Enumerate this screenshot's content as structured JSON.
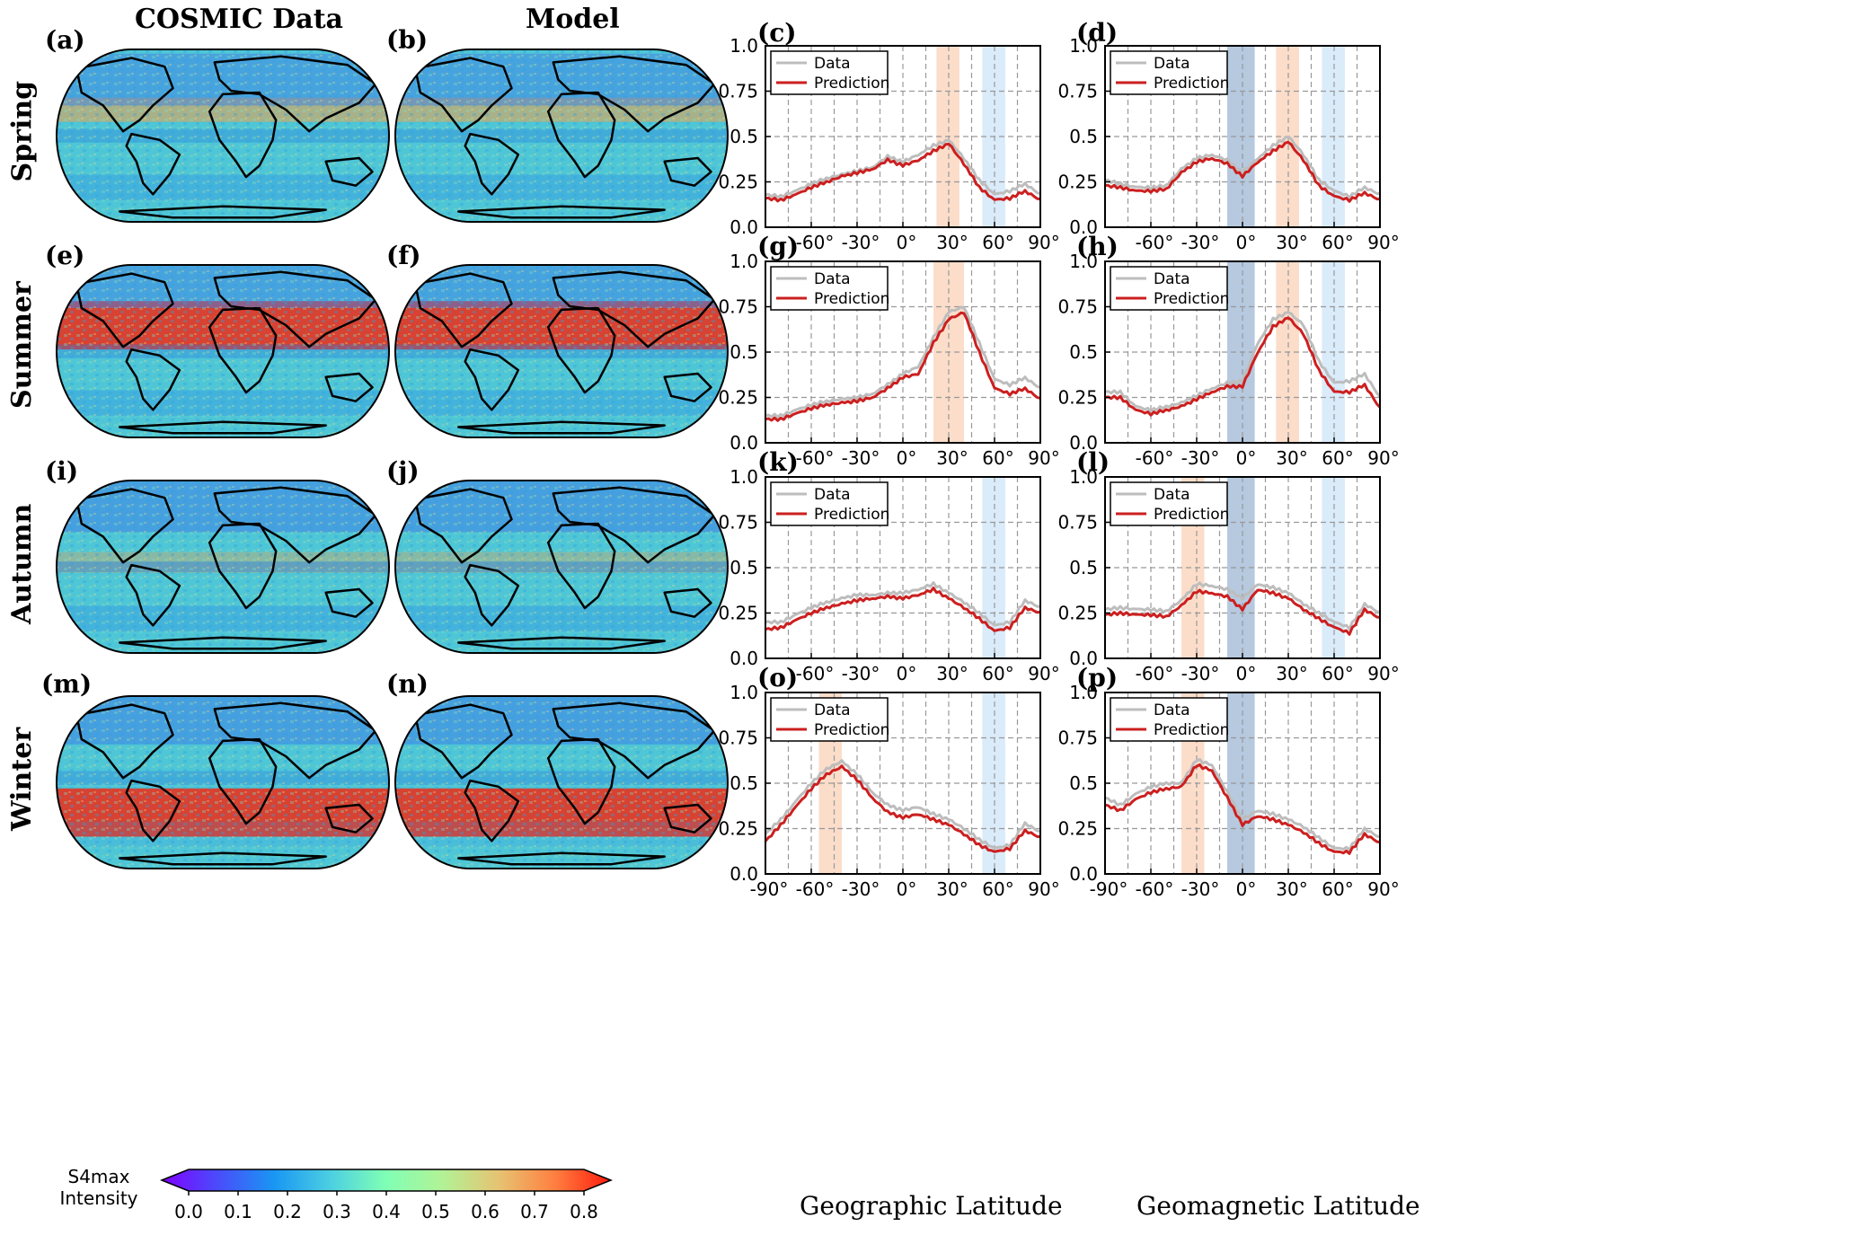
{
  "column_headers": {
    "data": "COSMIC Data",
    "model": "Model"
  },
  "seasons": [
    "Spring",
    "Summer",
    "Autumn",
    "Winter"
  ],
  "map_labels": [
    [
      "(a)",
      "(b)"
    ],
    [
      "(e)",
      "(f)"
    ],
    [
      "(i)",
      "(j)"
    ],
    [
      "(m)",
      "(n)"
    ]
  ],
  "line_labels": [
    [
      "(c)",
      "(d)"
    ],
    [
      "(g)",
      "(h)"
    ],
    [
      "(k)",
      "(l)"
    ],
    [
      "(o)",
      "(p)"
    ]
  ],
  "colorbar": {
    "title_line1": "S4max",
    "title_line2": "Intensity",
    "ticks": [
      "0.0",
      "0.1",
      "0.2",
      "0.3",
      "0.4",
      "0.5",
      "0.6",
      "0.7",
      "0.8"
    ],
    "colormap": "rainbow",
    "range": [
      0,
      0.8
    ]
  },
  "legend": {
    "data": "Data",
    "prediction": "Prediction"
  },
  "colors": {
    "data": "#bdbdbd",
    "prediction": "#cc1f1f",
    "orange_band": "#fbd9c4",
    "blue_band": "#d6e9f9",
    "darkblue_band": "#a9c0d9"
  },
  "axis": {
    "xticks": [
      -90,
      -60,
      -30,
      0,
      30,
      60,
      90
    ],
    "xticklabels": [
      "-90°",
      "-60°",
      "-30°",
      "0°",
      "30°",
      "60°",
      "90°"
    ],
    "yticklabels": [
      "0.0",
      "0.25",
      "0.5",
      "0.75",
      "1.0"
    ],
    "xtitle_geo": "Geographic Latitude",
    "xtitle_mag": "Geomagnetic Latitude"
  },
  "chart_data": [
    {
      "panel": "(c)",
      "type": "line",
      "xlim": [
        -90,
        90
      ],
      "ylim": [
        0,
        1
      ],
      "grid": true,
      "legend": "top-left",
      "bands": [
        {
          "from": 22,
          "to": 37,
          "color": "orange"
        },
        {
          "from": 52,
          "to": 67,
          "color": "blue"
        }
      ],
      "x": [
        -90,
        -80,
        -70,
        -60,
        -50,
        -40,
        -30,
        -20,
        -10,
        0,
        10,
        20,
        30,
        40,
        50,
        60,
        70,
        80,
        90
      ],
      "series": [
        {
          "name": "Data",
          "values": [
            0.18,
            0.17,
            0.2,
            0.24,
            0.27,
            0.29,
            0.31,
            0.33,
            0.39,
            0.36,
            0.4,
            0.45,
            0.48,
            0.38,
            0.26,
            0.18,
            0.2,
            0.24,
            0.18
          ]
        },
        {
          "name": "Prediction",
          "values": [
            0.16,
            0.15,
            0.18,
            0.22,
            0.25,
            0.28,
            0.3,
            0.32,
            0.37,
            0.34,
            0.37,
            0.42,
            0.46,
            0.35,
            0.22,
            0.15,
            0.16,
            0.2,
            0.15
          ]
        }
      ]
    },
    {
      "panel": "(d)",
      "type": "line",
      "xlim": [
        -90,
        90
      ],
      "ylim": [
        0,
        1
      ],
      "grid": true,
      "legend": "top-left",
      "bands": [
        {
          "from": -10,
          "to": 8,
          "color": "darkblue"
        },
        {
          "from": 22,
          "to": 37,
          "color": "orange"
        },
        {
          "from": 52,
          "to": 67,
          "color": "blue"
        }
      ],
      "x": [
        -90,
        -80,
        -70,
        -60,
        -50,
        -40,
        -30,
        -20,
        -10,
        0,
        10,
        20,
        30,
        40,
        50,
        60,
        70,
        80,
        90
      ],
      "series": [
        {
          "name": "Data",
          "values": [
            0.26,
            0.24,
            0.22,
            0.22,
            0.23,
            0.32,
            0.38,
            0.4,
            0.37,
            0.3,
            0.38,
            0.45,
            0.5,
            0.4,
            0.26,
            0.2,
            0.17,
            0.22,
            0.18
          ]
        },
        {
          "name": "Prediction",
          "values": [
            0.23,
            0.22,
            0.2,
            0.2,
            0.21,
            0.3,
            0.36,
            0.38,
            0.35,
            0.28,
            0.36,
            0.42,
            0.47,
            0.37,
            0.23,
            0.17,
            0.15,
            0.19,
            0.15
          ]
        }
      ]
    },
    {
      "panel": "(g)",
      "type": "line",
      "xlim": [
        -90,
        90
      ],
      "ylim": [
        0,
        1
      ],
      "grid": true,
      "legend": "top-left",
      "bands": [
        {
          "from": 20,
          "to": 40,
          "color": "orange"
        }
      ],
      "x": [
        -90,
        -80,
        -70,
        -60,
        -50,
        -40,
        -30,
        -20,
        -10,
        0,
        10,
        20,
        30,
        40,
        50,
        60,
        70,
        80,
        90
      ],
      "series": [
        {
          "name": "Data",
          "values": [
            0.15,
            0.15,
            0.18,
            0.21,
            0.23,
            0.24,
            0.25,
            0.27,
            0.32,
            0.38,
            0.42,
            0.58,
            0.72,
            0.75,
            0.55,
            0.35,
            0.32,
            0.36,
            0.3
          ]
        },
        {
          "name": "Prediction",
          "values": [
            0.13,
            0.13,
            0.16,
            0.19,
            0.21,
            0.22,
            0.23,
            0.25,
            0.3,
            0.36,
            0.38,
            0.55,
            0.68,
            0.72,
            0.5,
            0.3,
            0.27,
            0.3,
            0.24
          ]
        }
      ]
    },
    {
      "panel": "(h)",
      "type": "line",
      "xlim": [
        -90,
        90
      ],
      "ylim": [
        0,
        1
      ],
      "grid": true,
      "legend": "top-left",
      "bands": [
        {
          "from": -10,
          "to": 8,
          "color": "darkblue"
        },
        {
          "from": 22,
          "to": 37,
          "color": "orange"
        },
        {
          "from": 52,
          "to": 67,
          "color": "blue"
        }
      ],
      "x": [
        -90,
        -80,
        -70,
        -60,
        -50,
        -40,
        -30,
        -20,
        -10,
        0,
        10,
        20,
        30,
        40,
        50,
        60,
        70,
        80,
        90
      ],
      "series": [
        {
          "name": "Data",
          "values": [
            0.28,
            0.28,
            0.2,
            0.18,
            0.2,
            0.22,
            0.26,
            0.3,
            0.33,
            0.34,
            0.55,
            0.68,
            0.72,
            0.65,
            0.45,
            0.33,
            0.34,
            0.38,
            0.25
          ]
        },
        {
          "name": "Prediction",
          "values": [
            0.25,
            0.25,
            0.18,
            0.16,
            0.18,
            0.2,
            0.24,
            0.28,
            0.31,
            0.31,
            0.5,
            0.64,
            0.69,
            0.6,
            0.4,
            0.28,
            0.28,
            0.32,
            0.19
          ]
        }
      ]
    },
    {
      "panel": "(k)",
      "type": "line",
      "xlim": [
        -90,
        90
      ],
      "ylim": [
        0,
        1
      ],
      "grid": true,
      "legend": "top-left",
      "bands": [
        {
          "from": 52,
          "to": 67,
          "color": "blue"
        }
      ],
      "x": [
        -90,
        -80,
        -70,
        -60,
        -50,
        -40,
        -30,
        -20,
        -10,
        0,
        10,
        20,
        30,
        40,
        50,
        60,
        70,
        80,
        90
      ],
      "series": [
        {
          "name": "Data",
          "values": [
            0.2,
            0.2,
            0.24,
            0.28,
            0.31,
            0.33,
            0.35,
            0.35,
            0.36,
            0.36,
            0.38,
            0.41,
            0.36,
            0.31,
            0.25,
            0.18,
            0.2,
            0.32,
            0.28
          ]
        },
        {
          "name": "Prediction",
          "values": [
            0.16,
            0.17,
            0.21,
            0.25,
            0.28,
            0.3,
            0.32,
            0.33,
            0.34,
            0.33,
            0.35,
            0.38,
            0.33,
            0.28,
            0.22,
            0.15,
            0.17,
            0.28,
            0.25
          ]
        }
      ]
    },
    {
      "panel": "(l)",
      "type": "line",
      "xlim": [
        -90,
        90
      ],
      "ylim": [
        0,
        1
      ],
      "grid": true,
      "legend": "top-left",
      "bands": [
        {
          "from": -40,
          "to": -25,
          "color": "orange"
        },
        {
          "from": -10,
          "to": 8,
          "color": "darkblue"
        },
        {
          "from": 52,
          "to": 67,
          "color": "blue"
        }
      ],
      "x": [
        -90,
        -80,
        -70,
        -60,
        -50,
        -40,
        -30,
        -20,
        -10,
        0,
        10,
        20,
        30,
        40,
        50,
        60,
        70,
        80,
        90
      ],
      "series": [
        {
          "name": "Data",
          "values": [
            0.27,
            0.28,
            0.27,
            0.27,
            0.26,
            0.32,
            0.41,
            0.4,
            0.38,
            0.33,
            0.41,
            0.39,
            0.36,
            0.3,
            0.25,
            0.2,
            0.17,
            0.3,
            0.25
          ]
        },
        {
          "name": "Prediction",
          "values": [
            0.24,
            0.25,
            0.24,
            0.24,
            0.23,
            0.29,
            0.37,
            0.36,
            0.34,
            0.27,
            0.38,
            0.36,
            0.33,
            0.27,
            0.22,
            0.17,
            0.14,
            0.27,
            0.22
          ]
        }
      ]
    },
    {
      "panel": "(o)",
      "type": "line",
      "xlim": [
        -90,
        90
      ],
      "ylim": [
        0,
        1
      ],
      "grid": true,
      "legend": "top-left",
      "bands": [
        {
          "from": -55,
          "to": -40,
          "color": "orange"
        },
        {
          "from": 52,
          "to": 67,
          "color": "blue"
        }
      ],
      "x": [
        -90,
        -80,
        -70,
        -60,
        -50,
        -40,
        -30,
        -20,
        -10,
        0,
        10,
        20,
        30,
        40,
        50,
        60,
        70,
        80,
        90
      ],
      "series": [
        {
          "name": "Data",
          "values": [
            0.22,
            0.3,
            0.4,
            0.5,
            0.58,
            0.62,
            0.55,
            0.45,
            0.38,
            0.35,
            0.37,
            0.33,
            0.3,
            0.25,
            0.19,
            0.14,
            0.16,
            0.28,
            0.23
          ]
        },
        {
          "name": "Prediction",
          "values": [
            0.18,
            0.27,
            0.37,
            0.47,
            0.55,
            0.59,
            0.52,
            0.42,
            0.34,
            0.31,
            0.33,
            0.3,
            0.27,
            0.22,
            0.16,
            0.12,
            0.14,
            0.24,
            0.2
          ]
        }
      ]
    },
    {
      "panel": "(p)",
      "type": "line",
      "xlim": [
        -90,
        90
      ],
      "ylim": [
        0,
        1
      ],
      "grid": true,
      "legend": "top-left",
      "bands": [
        {
          "from": -40,
          "to": -25,
          "color": "orange"
        },
        {
          "from": -10,
          "to": 8,
          "color": "darkblue"
        }
      ],
      "x": [
        -90,
        -80,
        -70,
        -60,
        -50,
        -40,
        -30,
        -20,
        -10,
        0,
        10,
        20,
        30,
        40,
        50,
        60,
        70,
        80,
        90
      ],
      "series": [
        {
          "name": "Data",
          "values": [
            0.42,
            0.38,
            0.44,
            0.48,
            0.5,
            0.5,
            0.63,
            0.6,
            0.45,
            0.3,
            0.35,
            0.33,
            0.3,
            0.26,
            0.2,
            0.14,
            0.14,
            0.25,
            0.2
          ]
        },
        {
          "name": "Prediction",
          "values": [
            0.38,
            0.35,
            0.41,
            0.45,
            0.47,
            0.48,
            0.6,
            0.57,
            0.42,
            0.27,
            0.32,
            0.3,
            0.27,
            0.23,
            0.17,
            0.12,
            0.12,
            0.22,
            0.17
          ]
        }
      ]
    }
  ]
}
